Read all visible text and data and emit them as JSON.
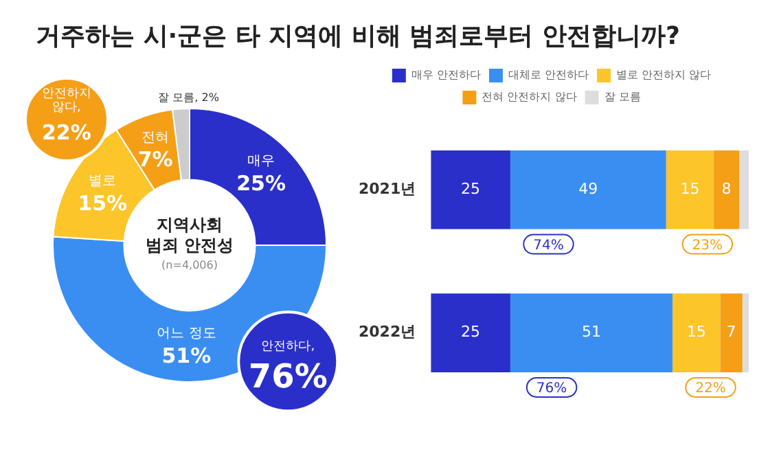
{
  "chart_data": [
    {
      "type": "donut",
      "title": "거주하는 시·군은 타 지역에 비해 범죄로부터 안전합니까?",
      "categories": [
        "매우",
        "어느 정도",
        "별로",
        "전혀",
        "잘 모름"
      ],
      "values": [
        25,
        51,
        15,
        7,
        2
      ],
      "value_labels": [
        "25%",
        "51%",
        "15%",
        "7%",
        "2%"
      ],
      "colors": [
        "#2b2fc9",
        "#3a8ef2",
        "#fcc52a",
        "#f59f16",
        "#cccccc"
      ],
      "annotations": [
        "지역사회 범죄 안전성",
        "(n=4,006)",
        "안전하다, 76%",
        "안전하지 않다, 22%"
      ],
      "legend": false
    },
    {
      "type": "bar",
      "orientation": "horizontal",
      "stacked": true,
      "categories": [
        "2021년",
        "2022년"
      ],
      "series": [
        {
          "name": "매우 안전하다",
          "color": "#2b2fc9",
          "values": [
            25,
            25
          ],
          "value_labels": [
            "25",
            "25"
          ]
        },
        {
          "name": "대체로 안전하다",
          "color": "#3a8ef2",
          "values": [
            49,
            51
          ],
          "value_labels": [
            "49",
            "51"
          ]
        },
        {
          "name": "별로 안전하지 않다",
          "color": "#fcc52a",
          "values": [
            15,
            15
          ],
          "value_labels": [
            "15",
            "15"
          ]
        },
        {
          "name": "전혀 안전하지 않다",
          "color": "#f59f16",
          "values": [
            8,
            7
          ],
          "value_labels": [
            "8",
            "7"
          ]
        },
        {
          "name": "잘 모름",
          "color": "#dddddd",
          "values": [
            3,
            2
          ],
          "value_labels": [
            null,
            null
          ]
        }
      ],
      "annotations": [
        "74%",
        "23%",
        "76%",
        "22%"
      ],
      "legend": "top",
      "grid": false
    }
  ]
}
